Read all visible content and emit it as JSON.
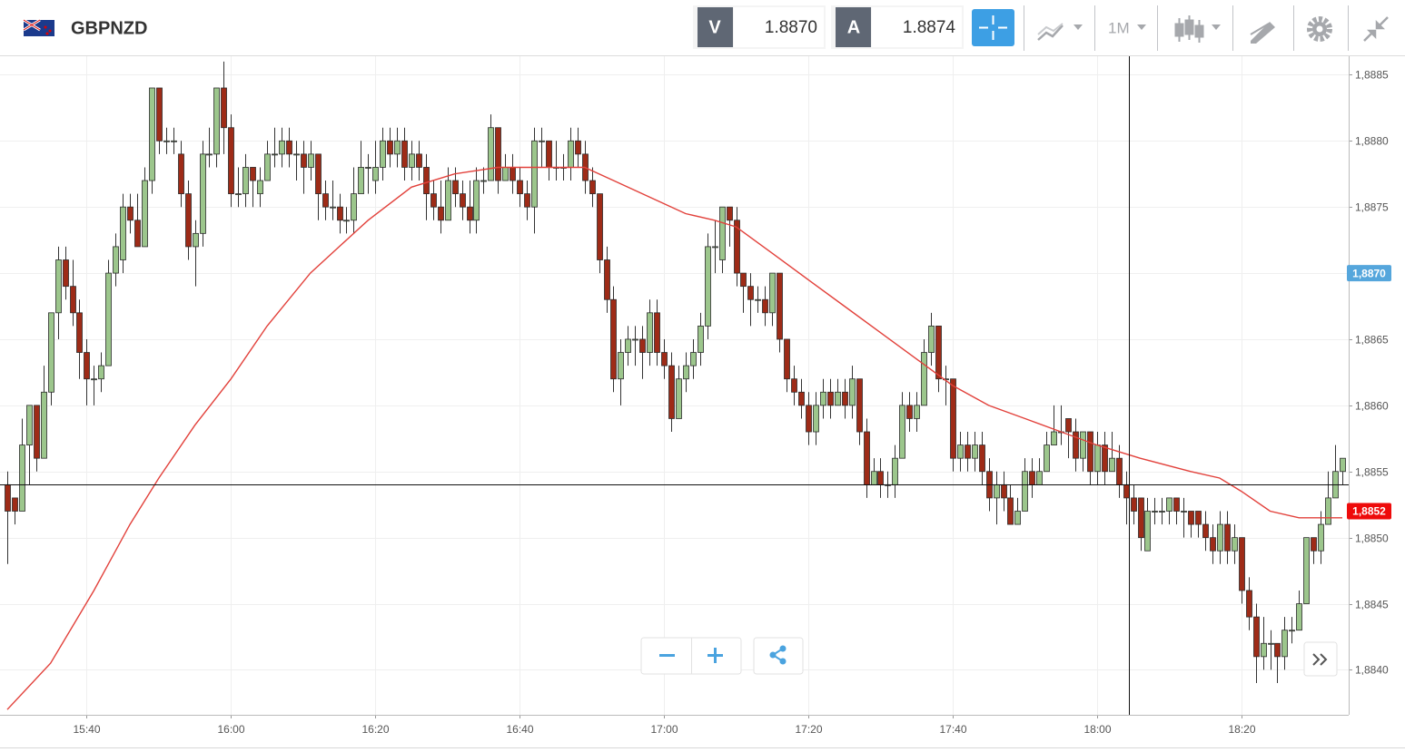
{
  "toolbar": {
    "bid_label": "V",
    "bid": "1.8870",
    "ask_label": "A",
    "ask": "1.8874",
    "timeframe": "1M"
  },
  "chart_data": {
    "type": "candlestick",
    "title": "GBPNZD",
    "x": [
      "15:29",
      "15:30",
      "15:31",
      "15:32",
      "15:33",
      "15:34",
      "15:35",
      "15:36",
      "15:37",
      "15:38",
      "15:39",
      "15:40",
      "15:41",
      "15:42",
      "15:43",
      "15:44",
      "15:45",
      "15:46",
      "15:47",
      "15:48",
      "15:49",
      "15:50",
      "15:51",
      "15:52",
      "15:53",
      "15:54",
      "15:55",
      "15:56",
      "15:57",
      "15:58",
      "15:59",
      "16:00",
      "16:01",
      "16:02",
      "16:03",
      "16:04",
      "16:05",
      "16:06",
      "16:07",
      "16:08",
      "16:09",
      "16:10",
      "16:11",
      "16:12",
      "16:13",
      "16:14",
      "16:15",
      "16:16",
      "16:17",
      "16:18",
      "16:19",
      "16:20",
      "16:21",
      "16:22",
      "16:23",
      "16:24",
      "16:25",
      "16:26",
      "16:27",
      "16:28",
      "16:29",
      "16:30",
      "16:31",
      "16:32",
      "16:33",
      "16:34",
      "16:35",
      "16:36",
      "16:37",
      "16:38",
      "16:39",
      "16:40",
      "16:41",
      "16:42",
      "16:43",
      "16:44",
      "16:45",
      "16:46",
      "16:47",
      "16:48",
      "16:49",
      "16:50",
      "16:51",
      "16:52",
      "16:53",
      "16:54",
      "16:55",
      "16:56",
      "16:57",
      "16:58",
      "16:59",
      "17:00",
      "17:01",
      "17:02",
      "17:03",
      "17:04",
      "17:05",
      "17:06",
      "17:07",
      "17:08",
      "17:09",
      "17:10",
      "17:11",
      "17:12",
      "17:13",
      "17:14",
      "17:15",
      "17:16",
      "17:17",
      "17:18",
      "17:19",
      "17:20",
      "17:21",
      "17:22",
      "17:23",
      "17:24",
      "17:25",
      "17:26",
      "17:27",
      "17:28",
      "17:29",
      "17:30",
      "17:31",
      "17:32",
      "17:33",
      "17:34",
      "17:35",
      "17:36",
      "17:37",
      "17:38",
      "17:39",
      "17:40",
      "17:41",
      "17:42",
      "17:43",
      "17:44",
      "17:45",
      "17:46",
      "17:47",
      "17:48",
      "17:49",
      "17:50",
      "17:51",
      "17:52",
      "17:53",
      "17:54",
      "17:55",
      "17:56",
      "17:57",
      "17:58",
      "17:59",
      "18:00",
      "18:01",
      "18:02",
      "18:03",
      "18:04",
      "18:05",
      "18:06",
      "18:07",
      "18:08",
      "18:09",
      "18:10",
      "18:11",
      "18:12",
      "18:13",
      "18:14",
      "18:15",
      "18:16",
      "18:17",
      "18:18",
      "18:19",
      "18:20",
      "18:21",
      "18:22",
      "18:23",
      "18:24",
      "18:25",
      "18:26",
      "18:27",
      "18:28",
      "18:29",
      "18:30",
      "18:31",
      "18:32",
      "18:33",
      "18:34"
    ],
    "open": [
      1.8854,
      1.8853,
      1.8852,
      1.8857,
      1.886,
      1.8856,
      1.8861,
      1.8867,
      1.8871,
      1.8869,
      1.8867,
      1.8864,
      1.8862,
      1.8862,
      1.8863,
      1.887,
      1.8871,
      1.8875,
      1.8874,
      1.8872,
      1.8877,
      1.8884,
      1.888,
      1.888,
      1.8879,
      1.8876,
      1.8872,
      1.8873,
      1.8879,
      1.8879,
      1.8884,
      1.8881,
      1.8876,
      1.8876,
      1.8878,
      1.8876,
      1.8877,
      1.8879,
      1.8879,
      1.888,
      1.8879,
      1.8879,
      1.8878,
      1.8879,
      1.8876,
      1.8875,
      1.8875,
      1.8874,
      1.8874,
      1.8876,
      1.8878,
      1.8877,
      1.8878,
      1.888,
      1.8879,
      1.888,
      1.8878,
      1.8879,
      1.8878,
      1.8876,
      1.8875,
      1.8874,
      1.8877,
      1.8876,
      1.8875,
      1.8874,
      1.8877,
      1.8877,
      1.8881,
      1.8877,
      1.8878,
      1.8877,
      1.8876,
      1.8875,
      1.888,
      1.888,
      1.8878,
      1.8878,
      1.8878,
      1.888,
      1.8879,
      1.8877,
      1.8876,
      1.8871,
      1.8868,
      1.8862,
      1.8864,
      1.8865,
      1.8865,
      1.8864,
      1.8867,
      1.8864,
      1.8863,
      1.8859,
      1.8862,
      1.8863,
      1.8864,
      1.8866,
      1.8872,
      1.8871,
      1.8875,
      1.8874,
      1.887,
      1.8869,
      1.8868,
      1.8868,
      1.8867,
      1.887,
      1.8865,
      1.8862,
      1.8861,
      1.886,
      1.8858,
      1.886,
      1.8861,
      1.886,
      1.8861,
      1.886,
      1.8862,
      1.8858,
      1.8854,
      1.8855,
      1.8854,
      1.8854,
      1.8856,
      1.886,
      1.8859,
      1.886,
      1.8864,
      1.8866,
      1.8862,
      1.8862,
      1.8856,
      1.8857,
      1.8856,
      1.8857,
      1.8855,
      1.8853,
      1.8854,
      1.8853,
      1.8851,
      1.8852,
      1.8855,
      1.8854,
      1.8855,
      1.8857,
      1.8858,
      1.8859,
      1.8858,
      1.8856,
      1.8858,
      1.8855,
      1.8857,
      1.8855,
      1.8856,
      1.8854,
      1.8853,
      1.8853,
      1.8849,
      1.8852,
      1.8852,
      1.8852,
      1.8853,
      1.8852,
      1.8852,
      1.8852,
      1.8851,
      1.885,
      1.8849,
      1.8851,
      1.8849,
      1.885,
      1.8846,
      1.8844,
      1.8841,
      1.8842,
      1.8842,
      1.8841,
      1.8843,
      1.8843,
      1.8845,
      1.885,
      1.8849,
      1.8851,
      1.8853,
      1.8855
    ],
    "high": [
      1.8855,
      1.8853,
      1.8859,
      1.886,
      1.886,
      1.8863,
      1.8867,
      1.8872,
      1.8872,
      1.8871,
      1.8868,
      1.8865,
      1.8863,
      1.8864,
      1.8871,
      1.8873,
      1.8876,
      1.8876,
      1.8876,
      1.8878,
      1.8884,
      1.8884,
      1.8881,
      1.8881,
      1.888,
      1.8877,
      1.8874,
      1.888,
      1.8881,
      1.8884,
      1.8886,
      1.8882,
      1.8878,
      1.8879,
      1.8878,
      1.8878,
      1.888,
      1.8881,
      1.8881,
      1.8881,
      1.888,
      1.888,
      1.888,
      1.8879,
      1.8877,
      1.8877,
      1.8876,
      1.8875,
      1.8878,
      1.888,
      1.8879,
      1.888,
      1.8881,
      1.8881,
      1.8881,
      1.8881,
      1.888,
      1.888,
      1.8879,
      1.8877,
      1.8877,
      1.8878,
      1.8878,
      1.8877,
      1.8877,
      1.8878,
      1.8878,
      1.8882,
      1.8881,
      1.8879,
      1.8879,
      1.8878,
      1.8877,
      1.8881,
      1.8881,
      1.888,
      1.888,
      1.8879,
      1.8881,
      1.8881,
      1.888,
      1.8878,
      1.8876,
      1.8872,
      1.8869,
      1.8865,
      1.8866,
      1.8866,
      1.8866,
      1.8868,
      1.8868,
      1.8865,
      1.8864,
      1.8863,
      1.8864,
      1.8865,
      1.8867,
      1.8873,
      1.8874,
      1.8875,
      1.8875,
      1.8875,
      1.887,
      1.887,
      1.8869,
      1.8869,
      1.887,
      1.887,
      1.8865,
      1.8863,
      1.8862,
      1.8861,
      1.8861,
      1.8862,
      1.8862,
      1.8862,
      1.8862,
      1.8863,
      1.8862,
      1.8859,
      1.8856,
      1.8856,
      1.8855,
      1.8857,
      1.8861,
      1.8861,
      1.8861,
      1.8865,
      1.8867,
      1.8866,
      1.8863,
      1.8862,
      1.8858,
      1.8858,
      1.8858,
      1.8858,
      1.8856,
      1.8855,
      1.8855,
      1.8854,
      1.8853,
      1.8856,
      1.8856,
      1.8856,
      1.8858,
      1.886,
      1.886,
      1.8859,
      1.8859,
      1.8858,
      1.8858,
      1.8858,
      1.8858,
      1.8858,
      1.8857,
      1.8855,
      1.8854,
      1.8853,
      1.8853,
      1.8853,
      1.8853,
      1.8853,
      1.8853,
      1.8853,
      1.8852,
      1.8852,
      1.8852,
      1.8851,
      1.8852,
      1.8852,
      1.8851,
      1.885,
      1.8847,
      1.8845,
      1.8844,
      1.8843,
      1.8842,
      1.8844,
      1.8844,
      1.8846,
      1.885,
      1.885,
      1.8852,
      1.8855,
      1.8857,
      1.8856
    ],
    "low": [
      1.8848,
      1.8851,
      1.8852,
      1.8854,
      1.8855,
      1.8856,
      1.886,
      1.8865,
      1.8868,
      1.8866,
      1.8862,
      1.886,
      1.886,
      1.8861,
      1.8863,
      1.8869,
      1.887,
      1.8873,
      1.8872,
      1.8872,
      1.8876,
      1.8879,
      1.8879,
      1.8879,
      1.8875,
      1.8871,
      1.8869,
      1.8872,
      1.8878,
      1.8878,
      1.8879,
      1.8875,
      1.8875,
      1.8875,
      1.8875,
      1.8875,
      1.8877,
      1.8878,
      1.8878,
      1.8878,
      1.8877,
      1.8876,
      1.8877,
      1.8874,
      1.8874,
      1.8874,
      1.8873,
      1.8873,
      1.8873,
      1.8876,
      1.8876,
      1.8876,
      1.8877,
      1.8878,
      1.8878,
      1.8877,
      1.8877,
      1.8877,
      1.8874,
      1.8874,
      1.8873,
      1.8874,
      1.8875,
      1.8874,
      1.8873,
      1.8873,
      1.8876,
      1.8877,
      1.8876,
      1.8877,
      1.8876,
      1.8875,
      1.8874,
      1.8873,
      1.8878,
      1.8877,
      1.8877,
      1.8877,
      1.8877,
      1.8878,
      1.8876,
      1.8875,
      1.887,
      1.8867,
      1.8861,
      1.886,
      1.8863,
      1.8863,
      1.8862,
      1.8863,
      1.8863,
      1.8862,
      1.8858,
      1.8859,
      1.8861,
      1.8862,
      1.8863,
      1.8865,
      1.887,
      1.887,
      1.8872,
      1.8869,
      1.8867,
      1.8866,
      1.8867,
      1.8866,
      1.8866,
      1.8864,
      1.8861,
      1.886,
      1.8859,
      1.8857,
      1.8857,
      1.8859,
      1.8859,
      1.886,
      1.8859,
      1.8859,
      1.8857,
      1.8853,
      1.8854,
      1.8853,
      1.8853,
      1.8853,
      1.8856,
      1.8858,
      1.8858,
      1.886,
      1.8863,
      1.8861,
      1.886,
      1.8855,
      1.8855,
      1.8855,
      1.8855,
      1.8854,
      1.8852,
      1.8851,
      1.8852,
      1.8851,
      1.8851,
      1.8852,
      1.8853,
      1.8854,
      1.8855,
      1.8857,
      1.8857,
      1.8856,
      1.8855,
      1.8855,
      1.8854,
      1.8854,
      1.8854,
      1.8855,
      1.8853,
      1.8851,
      1.8851,
      1.8849,
      1.8849,
      1.8851,
      1.8851,
      1.8851,
      1.8851,
      1.885,
      1.885,
      1.885,
      1.8849,
      1.8848,
      1.8848,
      1.8848,
      1.8848,
      1.8845,
      1.8843,
      1.8839,
      1.884,
      1.884,
      1.8839,
      1.884,
      1.8842,
      1.8843,
      1.8845,
      1.8848,
      1.8848,
      1.8851,
      1.8853,
      1.8854
    ],
    "close": [
      1.8852,
      1.8852,
      1.8857,
      1.886,
      1.8856,
      1.8861,
      1.8867,
      1.8871,
      1.8869,
      1.8867,
      1.8864,
      1.8862,
      1.8862,
      1.8863,
      1.887,
      1.8872,
      1.8875,
      1.8874,
      1.8872,
      1.8877,
      1.8884,
      1.888,
      1.888,
      1.888,
      1.8876,
      1.8872,
      1.8873,
      1.8879,
      1.8879,
      1.8884,
      1.8881,
      1.8876,
      1.8876,
      1.8878,
      1.8877,
      1.8877,
      1.8879,
      1.8879,
      1.888,
      1.8879,
      1.8879,
      1.8878,
      1.8879,
      1.8876,
      1.8875,
      1.8875,
      1.8874,
      1.8874,
      1.8876,
      1.8878,
      1.8878,
      1.8878,
      1.888,
      1.8879,
      1.888,
      1.8878,
      1.8879,
      1.8878,
      1.8876,
      1.8875,
      1.8874,
      1.8877,
      1.8876,
      1.8875,
      1.8874,
      1.8877,
      1.8877,
      1.8881,
      1.8877,
      1.8878,
      1.8877,
      1.8876,
      1.8875,
      1.888,
      1.888,
      1.8878,
      1.8878,
      1.8878,
      1.888,
      1.8879,
      1.8877,
      1.8876,
      1.8871,
      1.8868,
      1.8862,
      1.8864,
      1.8865,
      1.8865,
      1.8864,
      1.8867,
      1.8864,
      1.8863,
      1.8859,
      1.8862,
      1.8863,
      1.8864,
      1.8866,
      1.8872,
      1.8872,
      1.8875,
      1.8874,
      1.887,
      1.8869,
      1.8868,
      1.8868,
      1.8867,
      1.887,
      1.8865,
      1.8862,
      1.8861,
      1.886,
      1.8858,
      1.886,
      1.8861,
      1.886,
      1.8861,
      1.886,
      1.8862,
      1.8858,
      1.8854,
      1.8855,
      1.8854,
      1.8854,
      1.8856,
      1.886,
      1.8859,
      1.886,
      1.8864,
      1.8866,
      1.8862,
      1.8862,
      1.8856,
      1.8857,
      1.8856,
      1.8857,
      1.8855,
      1.8853,
      1.8854,
      1.8853,
      1.8851,
      1.8852,
      1.8855,
      1.8854,
      1.8855,
      1.8857,
      1.8858,
      1.8858,
      1.8858,
      1.8856,
      1.8858,
      1.8855,
      1.8857,
      1.8855,
      1.8856,
      1.8854,
      1.8853,
      1.8852,
      1.885,
      1.8852,
      1.8852,
      1.8852,
      1.8853,
      1.8852,
      1.8852,
      1.8851,
      1.8851,
      1.885,
      1.8849,
      1.8851,
      1.8849,
      1.885,
      1.8846,
      1.8844,
      1.8841,
      1.8842,
      1.8842,
      1.8841,
      1.8843,
      1.8843,
      1.8845,
      1.885,
      1.8849,
      1.8851,
      1.8853,
      1.8855,
      1.8856
    ],
    "up_color": "#9cc68c",
    "down_color": "#9e2b17",
    "moving_average": {
      "color": "#e2413b",
      "x": [
        "15:29",
        "15:35",
        "15:41",
        "15:46",
        "15:50",
        "15:55",
        "16:00",
        "16:05",
        "16:11",
        "16:15",
        "16:19",
        "16:25",
        "16:31",
        "16:37",
        "16:43",
        "16:49",
        "16:53",
        "16:59",
        "17:03",
        "17:07",
        "17:10",
        "17:15",
        "17:20",
        "17:25",
        "17:30",
        "17:35",
        "17:40",
        "17:45",
        "17:50",
        "17:55",
        "18:00",
        "18:06",
        "18:13",
        "18:17",
        "18:20",
        "18:24",
        "18:28",
        "18:34"
      ],
      "values": [
        1.8837,
        1.88405,
        1.8846,
        1.8851,
        1.88545,
        1.88585,
        1.8862,
        1.8866,
        1.887,
        1.8872,
        1.8874,
        1.88765,
        1.88775,
        1.8878,
        1.8878,
        1.8878,
        1.8877,
        1.88755,
        1.88745,
        1.8874,
        1.88735,
        1.88715,
        1.88695,
        1.88675,
        1.88655,
        1.88635,
        1.88615,
        1.886,
        1.8859,
        1.8858,
        1.8857,
        1.8856,
        1.8855,
        1.88545,
        1.88535,
        1.8852,
        1.88515,
        1.88515
      ]
    },
    "ylim": [
      1.88366,
      1.88864
    ],
    "yticks": [
      {
        "value": 1.884,
        "label": "1,8840"
      },
      {
        "value": 1.8845,
        "label": "1,8845"
      },
      {
        "value": 1.885,
        "label": "1,8850"
      },
      {
        "value": 1.8855,
        "label": "1,8855"
      },
      {
        "value": 1.886,
        "label": "1,8860"
      },
      {
        "value": 1.8865,
        "label": "1,8865"
      },
      {
        "value": 1.887,
        "label": "1,8870"
      },
      {
        "value": 1.8875,
        "label": "1,8875"
      },
      {
        "value": 1.888,
        "label": "1,8880"
      },
      {
        "value": 1.8885,
        "label": "1,8885"
      }
    ],
    "xticks": [
      "15:40",
      "16:00",
      "16:20",
      "16:40",
      "17:00",
      "17:20",
      "17:40",
      "18:00",
      "18:20"
    ],
    "grid": true,
    "price_tags": [
      {
        "value": 1.887,
        "label": "1,8870",
        "color": "#55a6dc"
      },
      {
        "value": 1.8852,
        "label": "1,8852",
        "color": "#ee0b0b"
      }
    ]
  }
}
